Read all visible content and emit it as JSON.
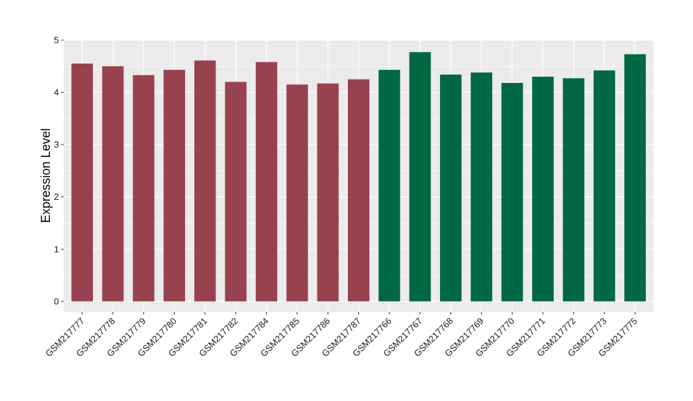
{
  "chart_data": {
    "type": "bar",
    "ylabel": "Expression Level",
    "xlabel": "",
    "ylim": [
      -0.2,
      5.0
    ],
    "yticks": [
      0,
      1,
      2,
      3,
      4,
      5
    ],
    "grid": true,
    "categories": [
      "GSM217777",
      "GSM217778",
      "GSM217779",
      "GSM217780",
      "GSM217781",
      "GSM217782",
      "GSM217784",
      "GSM217785",
      "GSM217786",
      "GSM217787",
      "GSM217766",
      "GSM217767",
      "GSM217768",
      "GSM217769",
      "GSM217770",
      "GSM217771",
      "GSM217772",
      "GSM217773",
      "GSM217775"
    ],
    "values": [
      4.55,
      4.5,
      4.33,
      4.43,
      4.61,
      4.2,
      4.58,
      4.15,
      4.17,
      4.25,
      4.43,
      4.77,
      4.34,
      4.38,
      4.18,
      4.3,
      4.27,
      4.42,
      4.73
    ],
    "groups": [
      0,
      0,
      0,
      0,
      0,
      0,
      0,
      0,
      0,
      0,
      1,
      1,
      1,
      1,
      1,
      1,
      1,
      1,
      1
    ],
    "group_colors": [
      "#99424f",
      "#006845"
    ],
    "panel_color": "#ebebeb",
    "grid_color": "#ffffff"
  }
}
